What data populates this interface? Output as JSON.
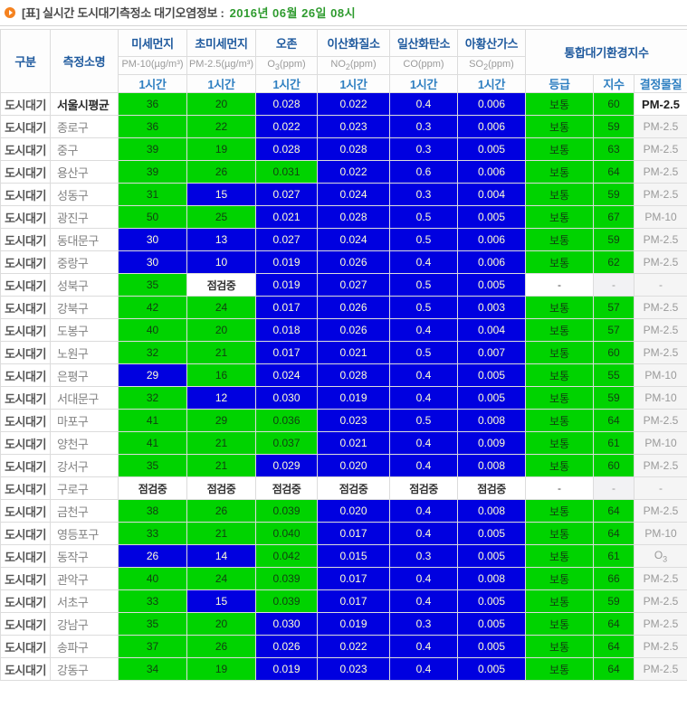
{
  "title": {
    "label": "[표] 실시간 도시대기측정소 대기오염정보 :",
    "date": "2016년 06월 26일 08시"
  },
  "colors": {
    "moderate_green": "#00d300",
    "good_blue": "#0000e0",
    "green_cell_text": "#113f11",
    "blue_cell_text": "#ffffd6",
    "header_title_blue": "#1f5a9e",
    "header_hour_blue": "#2e7fc1",
    "date_green": "#2e9b2e",
    "bullet_orange": "#f5821f"
  },
  "header": {
    "col_category": "구분",
    "col_station": "측정소명",
    "cai_title": "통합대기환경지수",
    "hour_label": "1시간",
    "col_grade": "등급",
    "col_index": "지수",
    "col_pollutant": "결정물질",
    "cols": [
      {
        "title": "미세먼지",
        "unit_pre": "PM-10(µg/m³)",
        "unit_sub": "",
        "unit_post": ""
      },
      {
        "title": "초미세먼지",
        "unit_pre": "PM-2.5(µg/m³)",
        "unit_sub": "",
        "unit_post": ""
      },
      {
        "title": "오존",
        "unit_pre": "O",
        "unit_sub": "3",
        "unit_post": "(ppm)"
      },
      {
        "title": "이산화질소",
        "unit_pre": "NO",
        "unit_sub": "2",
        "unit_post": "(ppm)"
      },
      {
        "title": "일산화탄소",
        "unit_pre": "CO",
        "unit_sub": "",
        "unit_post": "(ppm)"
      },
      {
        "title": "아황산가스",
        "unit_pre": "SO",
        "unit_sub": "2",
        "unit_post": "(ppm)"
      }
    ]
  },
  "rows": [
    {
      "category": "도시대기",
      "station": "서울시평균",
      "emph": true,
      "values": [
        {
          "v": "36",
          "c": "g"
        },
        {
          "v": "20",
          "c": "g"
        },
        {
          "v": "0.028",
          "c": "b"
        },
        {
          "v": "0.022",
          "c": "b"
        },
        {
          "v": "0.4",
          "c": "b"
        },
        {
          "v": "0.006",
          "c": "b"
        }
      ],
      "grade": {
        "v": "보통",
        "c": "g"
      },
      "index": {
        "v": "60",
        "c": "g"
      },
      "pollutant": {
        "text": "PM-2.5",
        "sub": "",
        "emph": true
      }
    },
    {
      "category": "도시대기",
      "station": "종로구",
      "emph": false,
      "values": [
        {
          "v": "36",
          "c": "g"
        },
        {
          "v": "22",
          "c": "g"
        },
        {
          "v": "0.022",
          "c": "b"
        },
        {
          "v": "0.023",
          "c": "b"
        },
        {
          "v": "0.3",
          "c": "b"
        },
        {
          "v": "0.006",
          "c": "b"
        }
      ],
      "grade": {
        "v": "보통",
        "c": "g"
      },
      "index": {
        "v": "59",
        "c": "g"
      },
      "pollutant": {
        "text": "PM-2.5",
        "sub": "",
        "emph": false
      }
    },
    {
      "category": "도시대기",
      "station": "중구",
      "emph": false,
      "values": [
        {
          "v": "39",
          "c": "g"
        },
        {
          "v": "19",
          "c": "g"
        },
        {
          "v": "0.028",
          "c": "b"
        },
        {
          "v": "0.028",
          "c": "b"
        },
        {
          "v": "0.3",
          "c": "b"
        },
        {
          "v": "0.005",
          "c": "b"
        }
      ],
      "grade": {
        "v": "보통",
        "c": "g"
      },
      "index": {
        "v": "63",
        "c": "g"
      },
      "pollutant": {
        "text": "PM-2.5",
        "sub": "",
        "emph": false
      }
    },
    {
      "category": "도시대기",
      "station": "용산구",
      "emph": false,
      "values": [
        {
          "v": "39",
          "c": "g"
        },
        {
          "v": "26",
          "c": "g"
        },
        {
          "v": "0.031",
          "c": "g"
        },
        {
          "v": "0.022",
          "c": "b"
        },
        {
          "v": "0.6",
          "c": "b"
        },
        {
          "v": "0.006",
          "c": "b"
        }
      ],
      "grade": {
        "v": "보통",
        "c": "g"
      },
      "index": {
        "v": "64",
        "c": "g"
      },
      "pollutant": {
        "text": "PM-2.5",
        "sub": "",
        "emph": false
      }
    },
    {
      "category": "도시대기",
      "station": "성동구",
      "emph": false,
      "values": [
        {
          "v": "31",
          "c": "g"
        },
        {
          "v": "15",
          "c": "b"
        },
        {
          "v": "0.027",
          "c": "b"
        },
        {
          "v": "0.024",
          "c": "b"
        },
        {
          "v": "0.3",
          "c": "b"
        },
        {
          "v": "0.004",
          "c": "b"
        }
      ],
      "grade": {
        "v": "보통",
        "c": "g"
      },
      "index": {
        "v": "59",
        "c": "g"
      },
      "pollutant": {
        "text": "PM-2.5",
        "sub": "",
        "emph": false
      }
    },
    {
      "category": "도시대기",
      "station": "광진구",
      "emph": false,
      "values": [
        {
          "v": "50",
          "c": "g"
        },
        {
          "v": "25",
          "c": "g"
        },
        {
          "v": "0.021",
          "c": "b"
        },
        {
          "v": "0.028",
          "c": "b"
        },
        {
          "v": "0.5",
          "c": "b"
        },
        {
          "v": "0.005",
          "c": "b"
        }
      ],
      "grade": {
        "v": "보통",
        "c": "g"
      },
      "index": {
        "v": "67",
        "c": "g"
      },
      "pollutant": {
        "text": "PM-10",
        "sub": "",
        "emph": false
      }
    },
    {
      "category": "도시대기",
      "station": "동대문구",
      "emph": false,
      "values": [
        {
          "v": "30",
          "c": "b"
        },
        {
          "v": "13",
          "c": "b"
        },
        {
          "v": "0.027",
          "c": "b"
        },
        {
          "v": "0.024",
          "c": "b"
        },
        {
          "v": "0.5",
          "c": "b"
        },
        {
          "v": "0.006",
          "c": "b"
        }
      ],
      "grade": {
        "v": "보통",
        "c": "g"
      },
      "index": {
        "v": "59",
        "c": "g"
      },
      "pollutant": {
        "text": "PM-2.5",
        "sub": "",
        "emph": false
      }
    },
    {
      "category": "도시대기",
      "station": "중랑구",
      "emph": false,
      "values": [
        {
          "v": "30",
          "c": "b"
        },
        {
          "v": "10",
          "c": "b"
        },
        {
          "v": "0.019",
          "c": "b"
        },
        {
          "v": "0.026",
          "c": "b"
        },
        {
          "v": "0.4",
          "c": "b"
        },
        {
          "v": "0.006",
          "c": "b"
        }
      ],
      "grade": {
        "v": "보통",
        "c": "g"
      },
      "index": {
        "v": "62",
        "c": "g"
      },
      "pollutant": {
        "text": "PM-2.5",
        "sub": "",
        "emph": false
      }
    },
    {
      "category": "도시대기",
      "station": "성북구",
      "emph": false,
      "values": [
        {
          "v": "35",
          "c": "g"
        },
        {
          "v": "점검중",
          "c": "chk"
        },
        {
          "v": "0.019",
          "c": "b"
        },
        {
          "v": "0.027",
          "c": "b"
        },
        {
          "v": "0.5",
          "c": "b"
        },
        {
          "v": "0.005",
          "c": "b"
        }
      ],
      "grade": {
        "v": "-",
        "c": "dash-strong"
      },
      "index": {
        "v": "-",
        "c": "dash"
      },
      "pollutant": {
        "text": "-",
        "sub": "",
        "emph": false
      }
    },
    {
      "category": "도시대기",
      "station": "강북구",
      "emph": false,
      "values": [
        {
          "v": "42",
          "c": "g"
        },
        {
          "v": "24",
          "c": "g"
        },
        {
          "v": "0.017",
          "c": "b"
        },
        {
          "v": "0.026",
          "c": "b"
        },
        {
          "v": "0.5",
          "c": "b"
        },
        {
          "v": "0.003",
          "c": "b"
        }
      ],
      "grade": {
        "v": "보통",
        "c": "g"
      },
      "index": {
        "v": "57",
        "c": "g"
      },
      "pollutant": {
        "text": "PM-2.5",
        "sub": "",
        "emph": false
      }
    },
    {
      "category": "도시대기",
      "station": "도봉구",
      "emph": false,
      "values": [
        {
          "v": "40",
          "c": "g"
        },
        {
          "v": "20",
          "c": "g"
        },
        {
          "v": "0.018",
          "c": "b"
        },
        {
          "v": "0.026",
          "c": "b"
        },
        {
          "v": "0.4",
          "c": "b"
        },
        {
          "v": "0.004",
          "c": "b"
        }
      ],
      "grade": {
        "v": "보통",
        "c": "g"
      },
      "index": {
        "v": "57",
        "c": "g"
      },
      "pollutant": {
        "text": "PM-2.5",
        "sub": "",
        "emph": false
      }
    },
    {
      "category": "도시대기",
      "station": "노원구",
      "emph": false,
      "values": [
        {
          "v": "32",
          "c": "g"
        },
        {
          "v": "21",
          "c": "g"
        },
        {
          "v": "0.017",
          "c": "b"
        },
        {
          "v": "0.021",
          "c": "b"
        },
        {
          "v": "0.5",
          "c": "b"
        },
        {
          "v": "0.007",
          "c": "b"
        }
      ],
      "grade": {
        "v": "보통",
        "c": "g"
      },
      "index": {
        "v": "60",
        "c": "g"
      },
      "pollutant": {
        "text": "PM-2.5",
        "sub": "",
        "emph": false
      }
    },
    {
      "category": "도시대기",
      "station": "은평구",
      "emph": false,
      "values": [
        {
          "v": "29",
          "c": "b"
        },
        {
          "v": "16",
          "c": "g"
        },
        {
          "v": "0.024",
          "c": "b"
        },
        {
          "v": "0.028",
          "c": "b"
        },
        {
          "v": "0.4",
          "c": "b"
        },
        {
          "v": "0.005",
          "c": "b"
        }
      ],
      "grade": {
        "v": "보통",
        "c": "g"
      },
      "index": {
        "v": "55",
        "c": "g"
      },
      "pollutant": {
        "text": "PM-10",
        "sub": "",
        "emph": false
      }
    },
    {
      "category": "도시대기",
      "station": "서대문구",
      "emph": false,
      "values": [
        {
          "v": "32",
          "c": "g"
        },
        {
          "v": "12",
          "c": "b"
        },
        {
          "v": "0.030",
          "c": "b"
        },
        {
          "v": "0.019",
          "c": "b"
        },
        {
          "v": "0.4",
          "c": "b"
        },
        {
          "v": "0.005",
          "c": "b"
        }
      ],
      "grade": {
        "v": "보통",
        "c": "g"
      },
      "index": {
        "v": "59",
        "c": "g"
      },
      "pollutant": {
        "text": "PM-10",
        "sub": "",
        "emph": false
      }
    },
    {
      "category": "도시대기",
      "station": "마포구",
      "emph": false,
      "values": [
        {
          "v": "41",
          "c": "g"
        },
        {
          "v": "29",
          "c": "g"
        },
        {
          "v": "0.036",
          "c": "g"
        },
        {
          "v": "0.023",
          "c": "b"
        },
        {
          "v": "0.5",
          "c": "b"
        },
        {
          "v": "0.008",
          "c": "b"
        }
      ],
      "grade": {
        "v": "보통",
        "c": "g"
      },
      "index": {
        "v": "64",
        "c": "g"
      },
      "pollutant": {
        "text": "PM-2.5",
        "sub": "",
        "emph": false
      }
    },
    {
      "category": "도시대기",
      "station": "양천구",
      "emph": false,
      "values": [
        {
          "v": "41",
          "c": "g"
        },
        {
          "v": "21",
          "c": "g"
        },
        {
          "v": "0.037",
          "c": "g"
        },
        {
          "v": "0.021",
          "c": "b"
        },
        {
          "v": "0.4",
          "c": "b"
        },
        {
          "v": "0.009",
          "c": "b"
        }
      ],
      "grade": {
        "v": "보통",
        "c": "g"
      },
      "index": {
        "v": "61",
        "c": "g"
      },
      "pollutant": {
        "text": "PM-10",
        "sub": "",
        "emph": false
      }
    },
    {
      "category": "도시대기",
      "station": "강서구",
      "emph": false,
      "values": [
        {
          "v": "35",
          "c": "g"
        },
        {
          "v": "21",
          "c": "g"
        },
        {
          "v": "0.029",
          "c": "b"
        },
        {
          "v": "0.020",
          "c": "b"
        },
        {
          "v": "0.4",
          "c": "b"
        },
        {
          "v": "0.008",
          "c": "b"
        }
      ],
      "grade": {
        "v": "보통",
        "c": "g"
      },
      "index": {
        "v": "60",
        "c": "g"
      },
      "pollutant": {
        "text": "PM-2.5",
        "sub": "",
        "emph": false
      }
    },
    {
      "category": "도시대기",
      "station": "구로구",
      "emph": false,
      "values": [
        {
          "v": "점검중",
          "c": "chk"
        },
        {
          "v": "점검중",
          "c": "chk"
        },
        {
          "v": "점검중",
          "c": "chk"
        },
        {
          "v": "점검중",
          "c": "chk"
        },
        {
          "v": "점검중",
          "c": "chk"
        },
        {
          "v": "점검중",
          "c": "chk"
        }
      ],
      "grade": {
        "v": "-",
        "c": "dash-strong"
      },
      "index": {
        "v": "-",
        "c": "dash"
      },
      "pollutant": {
        "text": "-",
        "sub": "",
        "emph": false
      }
    },
    {
      "category": "도시대기",
      "station": "금천구",
      "emph": false,
      "values": [
        {
          "v": "38",
          "c": "g"
        },
        {
          "v": "26",
          "c": "g"
        },
        {
          "v": "0.039",
          "c": "g"
        },
        {
          "v": "0.020",
          "c": "b"
        },
        {
          "v": "0.4",
          "c": "b"
        },
        {
          "v": "0.008",
          "c": "b"
        }
      ],
      "grade": {
        "v": "보통",
        "c": "g"
      },
      "index": {
        "v": "64",
        "c": "g"
      },
      "pollutant": {
        "text": "PM-2.5",
        "sub": "",
        "emph": false
      }
    },
    {
      "category": "도시대기",
      "station": "영등포구",
      "emph": false,
      "values": [
        {
          "v": "33",
          "c": "g"
        },
        {
          "v": "21",
          "c": "g"
        },
        {
          "v": "0.040",
          "c": "g"
        },
        {
          "v": "0.017",
          "c": "b"
        },
        {
          "v": "0.4",
          "c": "b"
        },
        {
          "v": "0.005",
          "c": "b"
        }
      ],
      "grade": {
        "v": "보통",
        "c": "g"
      },
      "index": {
        "v": "64",
        "c": "g"
      },
      "pollutant": {
        "text": "PM-10",
        "sub": "",
        "emph": false
      }
    },
    {
      "category": "도시대기",
      "station": "동작구",
      "emph": false,
      "values": [
        {
          "v": "26",
          "c": "b"
        },
        {
          "v": "14",
          "c": "b"
        },
        {
          "v": "0.042",
          "c": "g"
        },
        {
          "v": "0.015",
          "c": "b"
        },
        {
          "v": "0.3",
          "c": "b"
        },
        {
          "v": "0.005",
          "c": "b"
        }
      ],
      "grade": {
        "v": "보통",
        "c": "g"
      },
      "index": {
        "v": "61",
        "c": "g"
      },
      "pollutant": {
        "text": "O",
        "sub": "3",
        "emph": false
      }
    },
    {
      "category": "도시대기",
      "station": "관악구",
      "emph": false,
      "values": [
        {
          "v": "40",
          "c": "g"
        },
        {
          "v": "24",
          "c": "g"
        },
        {
          "v": "0.039",
          "c": "g"
        },
        {
          "v": "0.017",
          "c": "b"
        },
        {
          "v": "0.4",
          "c": "b"
        },
        {
          "v": "0.008",
          "c": "b"
        }
      ],
      "grade": {
        "v": "보통",
        "c": "g"
      },
      "index": {
        "v": "66",
        "c": "g"
      },
      "pollutant": {
        "text": "PM-2.5",
        "sub": "",
        "emph": false
      }
    },
    {
      "category": "도시대기",
      "station": "서초구",
      "emph": false,
      "values": [
        {
          "v": "33",
          "c": "g"
        },
        {
          "v": "15",
          "c": "b"
        },
        {
          "v": "0.039",
          "c": "g"
        },
        {
          "v": "0.017",
          "c": "b"
        },
        {
          "v": "0.4",
          "c": "b"
        },
        {
          "v": "0.005",
          "c": "b"
        }
      ],
      "grade": {
        "v": "보통",
        "c": "g"
      },
      "index": {
        "v": "59",
        "c": "g"
      },
      "pollutant": {
        "text": "PM-2.5",
        "sub": "",
        "emph": false
      }
    },
    {
      "category": "도시대기",
      "station": "강남구",
      "emph": false,
      "values": [
        {
          "v": "35",
          "c": "g"
        },
        {
          "v": "20",
          "c": "g"
        },
        {
          "v": "0.030",
          "c": "b"
        },
        {
          "v": "0.019",
          "c": "b"
        },
        {
          "v": "0.3",
          "c": "b"
        },
        {
          "v": "0.005",
          "c": "b"
        }
      ],
      "grade": {
        "v": "보통",
        "c": "g"
      },
      "index": {
        "v": "64",
        "c": "g"
      },
      "pollutant": {
        "text": "PM-2.5",
        "sub": "",
        "emph": false
      }
    },
    {
      "category": "도시대기",
      "station": "송파구",
      "emph": false,
      "values": [
        {
          "v": "37",
          "c": "g"
        },
        {
          "v": "26",
          "c": "g"
        },
        {
          "v": "0.026",
          "c": "b"
        },
        {
          "v": "0.022",
          "c": "b"
        },
        {
          "v": "0.4",
          "c": "b"
        },
        {
          "v": "0.005",
          "c": "b"
        }
      ],
      "grade": {
        "v": "보통",
        "c": "g"
      },
      "index": {
        "v": "64",
        "c": "g"
      },
      "pollutant": {
        "text": "PM-2.5",
        "sub": "",
        "emph": false
      }
    },
    {
      "category": "도시대기",
      "station": "강동구",
      "emph": false,
      "values": [
        {
          "v": "34",
          "c": "g"
        },
        {
          "v": "19",
          "c": "g"
        },
        {
          "v": "0.019",
          "c": "b"
        },
        {
          "v": "0.023",
          "c": "b"
        },
        {
          "v": "0.4",
          "c": "b"
        },
        {
          "v": "0.005",
          "c": "b"
        }
      ],
      "grade": {
        "v": "보통",
        "c": "g"
      },
      "index": {
        "v": "64",
        "c": "g"
      },
      "pollutant": {
        "text": "PM-2.5",
        "sub": "",
        "emph": false
      }
    }
  ]
}
